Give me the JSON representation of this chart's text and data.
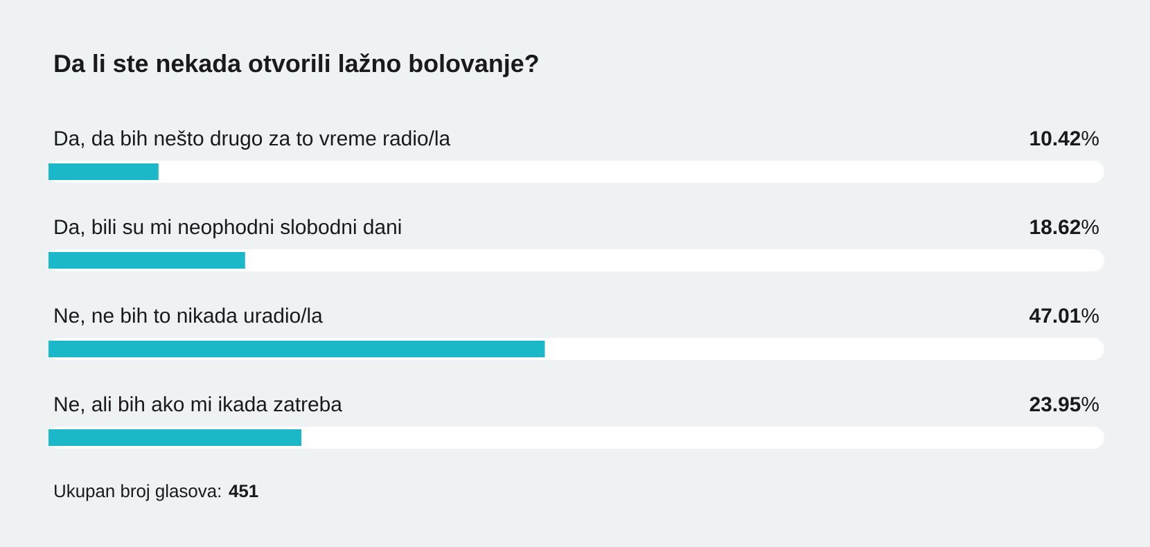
{
  "chart_data": {
    "type": "bar",
    "orientation": "horizontal",
    "title": "Da li ste nekada otvorili lažno bolovanje?",
    "categories": [
      "Da, da bih nešto drugo za to vreme radio/la",
      "Da, bili su mi neophodni slobodni dani",
      "Ne, ne bih to nikada uradio/la",
      "Ne, ali bih ako mi ikada zatreba"
    ],
    "values": [
      10.42,
      18.62,
      47.01,
      23.95
    ],
    "value_labels": [
      "**10.42**%",
      "**18.62**%",
      "**47.01**%",
      "**23.95**%"
    ],
    "color": "#1bb8c9",
    "xlim": [
      0,
      100
    ],
    "annotations": [
      "Ukupan broj glasova: **451**"
    ]
  }
}
